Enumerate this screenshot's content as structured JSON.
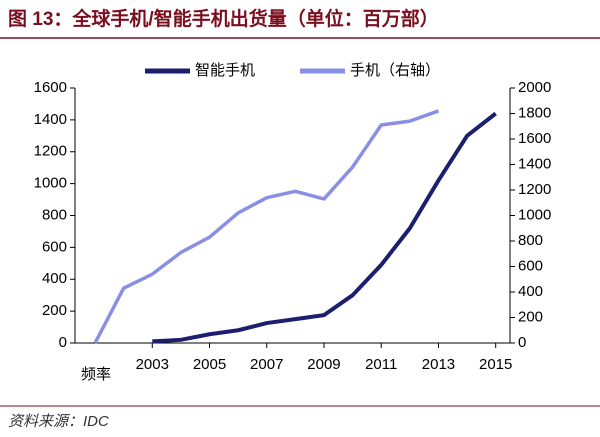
{
  "chart_data": {
    "type": "line",
    "title": "图 13：全球手机/智能手机出货量（单位：百万部）",
    "source": "资料来源：IDC",
    "xlabel": "频率",
    "x": [
      2001,
      2002,
      2003,
      2004,
      2005,
      2006,
      2007,
      2008,
      2009,
      2010,
      2011,
      2012,
      2013,
      2014,
      2015
    ],
    "xlim": [
      2000.3,
      2015.5
    ],
    "xticks": [
      2003,
      2005,
      2007,
      2009,
      2011,
      2013,
      2015
    ],
    "ylim": [
      0,
      1600
    ],
    "yticks": [
      0,
      200,
      400,
      600,
      800,
      1000,
      1200,
      1400,
      1600
    ],
    "y2lim": [
      0,
      2000
    ],
    "y2ticks": [
      0,
      200,
      400,
      600,
      800,
      1000,
      1200,
      1400,
      1600,
      1800,
      2000
    ],
    "legend": "top",
    "series": [
      {
        "name": "智能手机",
        "color": "#1b1f6e",
        "values": [
          null,
          null,
          10,
          20,
          55,
          80,
          125,
          150,
          175,
          300,
          490,
          720,
          1020,
          1300,
          1440
        ]
      },
      {
        "name": "手机（右轴）",
        "color": "#8a8fe6",
        "axis": "y2",
        "values": [
          0,
          430,
          540,
          710,
          830,
          1020,
          1140,
          1190,
          1130,
          1380,
          1710,
          1740,
          1820,
          null,
          null
        ]
      }
    ]
  }
}
